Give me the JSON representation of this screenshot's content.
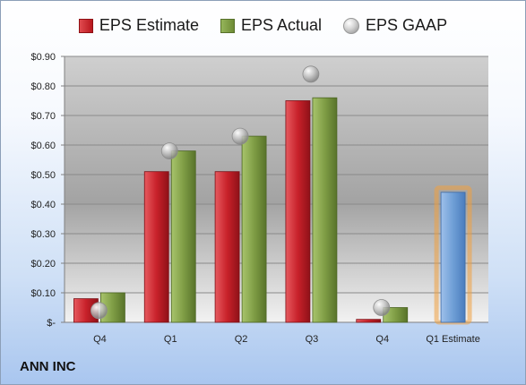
{
  "chart_data": {
    "type": "bar",
    "categories": [
      "Q4",
      "Q1",
      "Q2",
      "Q3",
      "Q4",
      "Q1 Estimate"
    ],
    "series": [
      {
        "name": "EPS Estimate",
        "values": [
          0.08,
          0.51,
          0.51,
          0.75,
          0.01,
          null
        ],
        "color": "#c8212a"
      },
      {
        "name": "EPS Actual",
        "values": [
          0.1,
          0.58,
          0.63,
          0.76,
          0.05,
          null
        ],
        "color": "#7f9d45"
      },
      {
        "name": "EPS GAAP",
        "values": [
          0.04,
          0.58,
          0.63,
          0.84,
          0.05,
          null
        ],
        "color": "#b4b4b4",
        "marker": "circle"
      }
    ],
    "forecast": {
      "category": "Q1 Estimate",
      "value": 0.44,
      "color": "#6f9fd6",
      "glow": "#f0a040"
    },
    "yticks": [
      {
        "value": 0,
        "label": "$-"
      },
      {
        "value": 0.1,
        "label": "$0.10"
      },
      {
        "value": 0.2,
        "label": "$0.20"
      },
      {
        "value": 0.3,
        "label": "$0.30"
      },
      {
        "value": 0.4,
        "label": "$0.40"
      },
      {
        "value": 0.5,
        "label": "$0.50"
      },
      {
        "value": 0.6,
        "label": "$0.60"
      },
      {
        "value": 0.7,
        "label": "$0.70"
      },
      {
        "value": 0.8,
        "label": "$0.80"
      },
      {
        "value": 0.9,
        "label": "$0.90"
      }
    ],
    "ylim": [
      0,
      0.9
    ],
    "grid": true,
    "legend_position": "top",
    "title": "",
    "xlabel": "",
    "ylabel": ""
  },
  "legend": {
    "estimate": "EPS Estimate",
    "actual": "EPS Actual",
    "gaap": "EPS GAAP"
  },
  "company": "ANN INC"
}
